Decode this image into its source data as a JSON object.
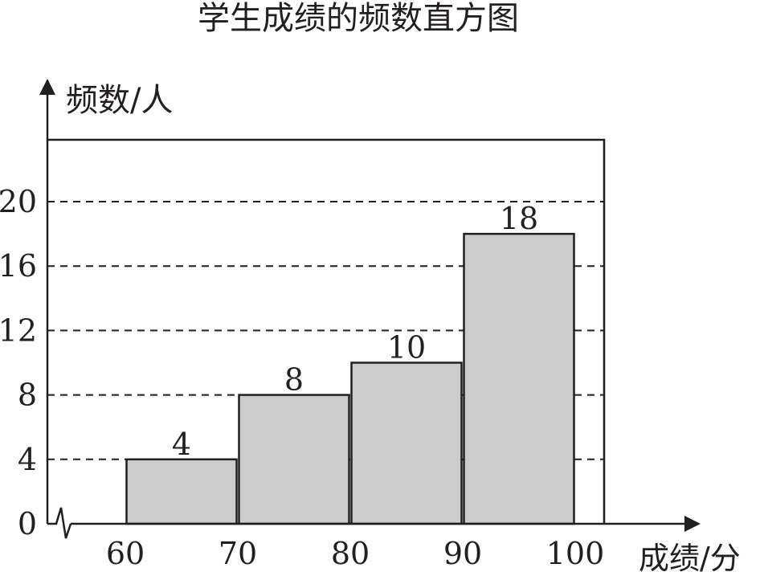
{
  "chart_data": {
    "type": "bar",
    "title": "学生成绩的频数直方图",
    "ylabel": "频数/人",
    "xlabel": "成绩/分",
    "x_edges": [
      60,
      70,
      80,
      90,
      100
    ],
    "x_tick_labels": [
      "60",
      "70",
      "80",
      "90",
      "100"
    ],
    "bins": [
      {
        "from": 60,
        "to": 70,
        "value": 4,
        "label": "4"
      },
      {
        "from": 70,
        "to": 80,
        "value": 8,
        "label": "8"
      },
      {
        "from": 80,
        "to": 90,
        "value": 10,
        "label": "10"
      },
      {
        "from": 90,
        "to": 100,
        "value": 18,
        "label": "18"
      }
    ],
    "y_ticks": [
      0,
      4,
      8,
      12,
      16,
      20
    ],
    "y_tick_labels": [
      "0",
      "4",
      "8",
      "12",
      "16",
      "20"
    ],
    "ylim": [
      0,
      24
    ],
    "xlim": [
      60,
      100
    ],
    "grid": "dashed horizontal at y ticks",
    "bar_color": "#cccccc",
    "stroke_color": "#231f20"
  }
}
